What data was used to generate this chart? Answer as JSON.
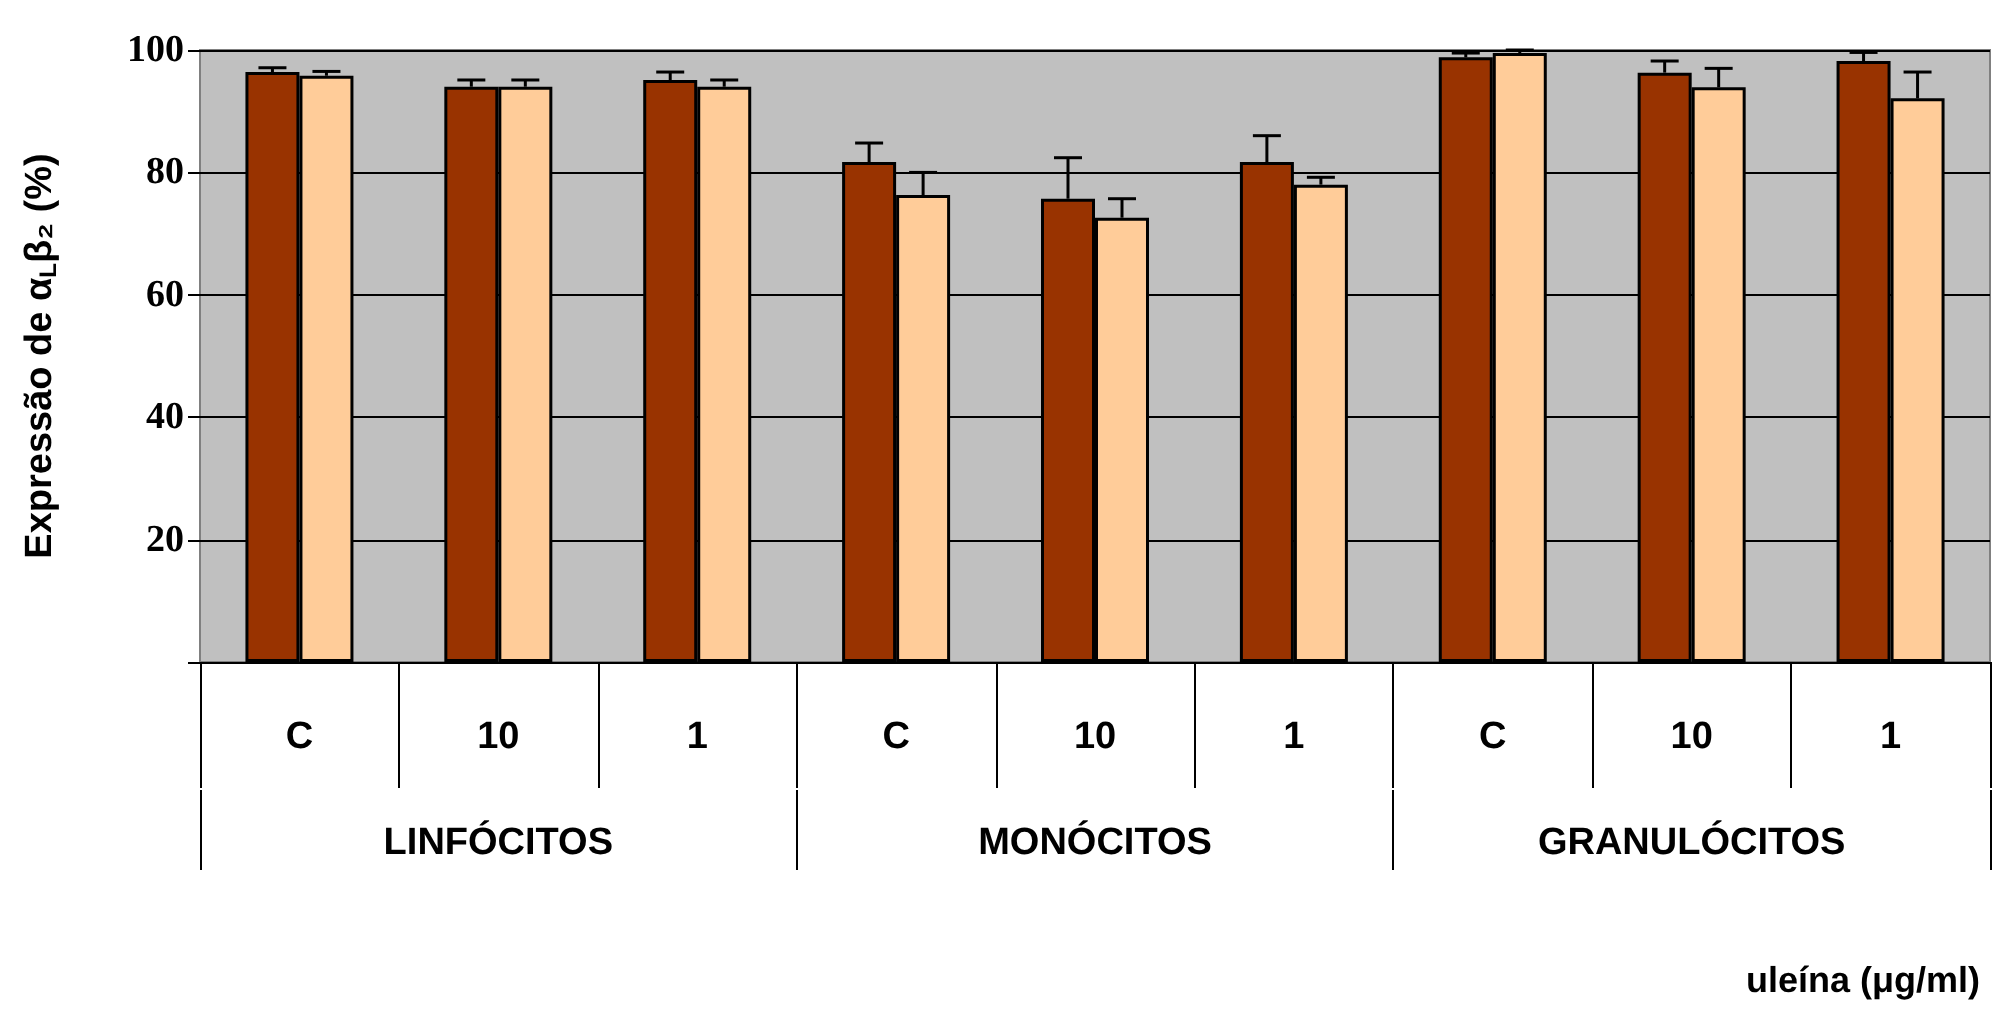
{
  "chart_data": {
    "type": "bar",
    "ylabel": "Expressão de α$_{L}$β₂ (%)",
    "categories": [
      "C",
      "10",
      "1",
      "C",
      "10",
      "1",
      "C",
      "10",
      "1"
    ],
    "annotations": [
      "LINFÓCITOS",
      "MONÓCITOS",
      "GRANULÓCITOS",
      "uleína (μg/ml)"
    ],
    "series": [
      {
        "color": "#993300",
        "values": [
          96.4,
          94.0,
          95.1,
          81.7,
          75.7,
          81.7,
          98.8,
          96.3,
          98.2
        ],
        "errors": [
          [
            96.4,
            97.1
          ],
          [
            94.0,
            95.1
          ],
          [
            95.1,
            96.4
          ],
          [
            81.7,
            84.8
          ],
          [
            75.7,
            82.4
          ],
          [
            81.7,
            86.0
          ],
          [
            98.8,
            99.5
          ],
          [
            96.3,
            98.2
          ],
          [
            98.2,
            99.6
          ]
        ]
      },
      {
        "color": "#ffcc99",
        "values": [
          95.8,
          94.0,
          94.0,
          76.3,
          72.6,
          78.0,
          99.5,
          93.9,
          92.1
        ],
        "errors": [
          [
            95.8,
            96.5
          ],
          [
            94.0,
            95.1
          ],
          [
            94.0,
            95.1
          ],
          [
            76.3,
            80.0
          ],
          [
            72.6,
            75.7
          ],
          [
            78.0,
            79.2
          ],
          [
            99.5,
            100
          ],
          [
            93.9,
            97.0
          ],
          [
            92.1,
            96.4
          ]
        ]
      }
    ],
    "ylim": [
      0,
      100
    ],
    "yticks": [
      {
        "value": 0,
        "label": null
      },
      20,
      40,
      60,
      80,
      100
    ],
    "grid": "y"
  }
}
